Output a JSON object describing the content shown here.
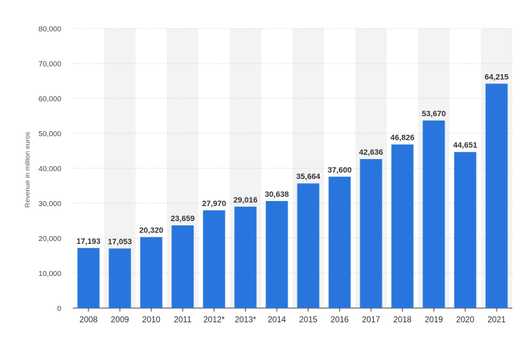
{
  "colors": {
    "bar": "#2876dd",
    "band": "#f3f3f3",
    "grid": "#c8c8c8",
    "axis": "#333333"
  },
  "chart_data": {
    "type": "bar",
    "title": "",
    "xlabel": "",
    "ylabel": "Revenue in million euros",
    "categories": [
      "2008",
      "2009",
      "2010",
      "2011",
      "2012*",
      "2013*",
      "2014",
      "2015",
      "2016",
      "2017",
      "2018",
      "2019",
      "2020",
      "2021"
    ],
    "values": [
      17193,
      17053,
      20320,
      23659,
      27970,
      29016,
      30638,
      35664,
      37600,
      42636,
      46826,
      53670,
      44651,
      64215
    ],
    "data_labels": [
      "17,193",
      "17,053",
      "20,320",
      "23,659",
      "27,970",
      "29,016",
      "30,638",
      "35,664",
      "37,600",
      "42,636",
      "46,826",
      "53,670",
      "44,651",
      "64,215"
    ],
    "ylim": [
      0,
      80000
    ],
    "yticks": [
      0,
      10000,
      20000,
      30000,
      40000,
      50000,
      60000,
      70000,
      80000
    ],
    "ytick_labels": [
      "0",
      "10,000",
      "20,000",
      "30,000",
      "40,000",
      "50,000",
      "60,000",
      "70,000",
      "80,000"
    ],
    "grid": true,
    "legend": "none"
  }
}
